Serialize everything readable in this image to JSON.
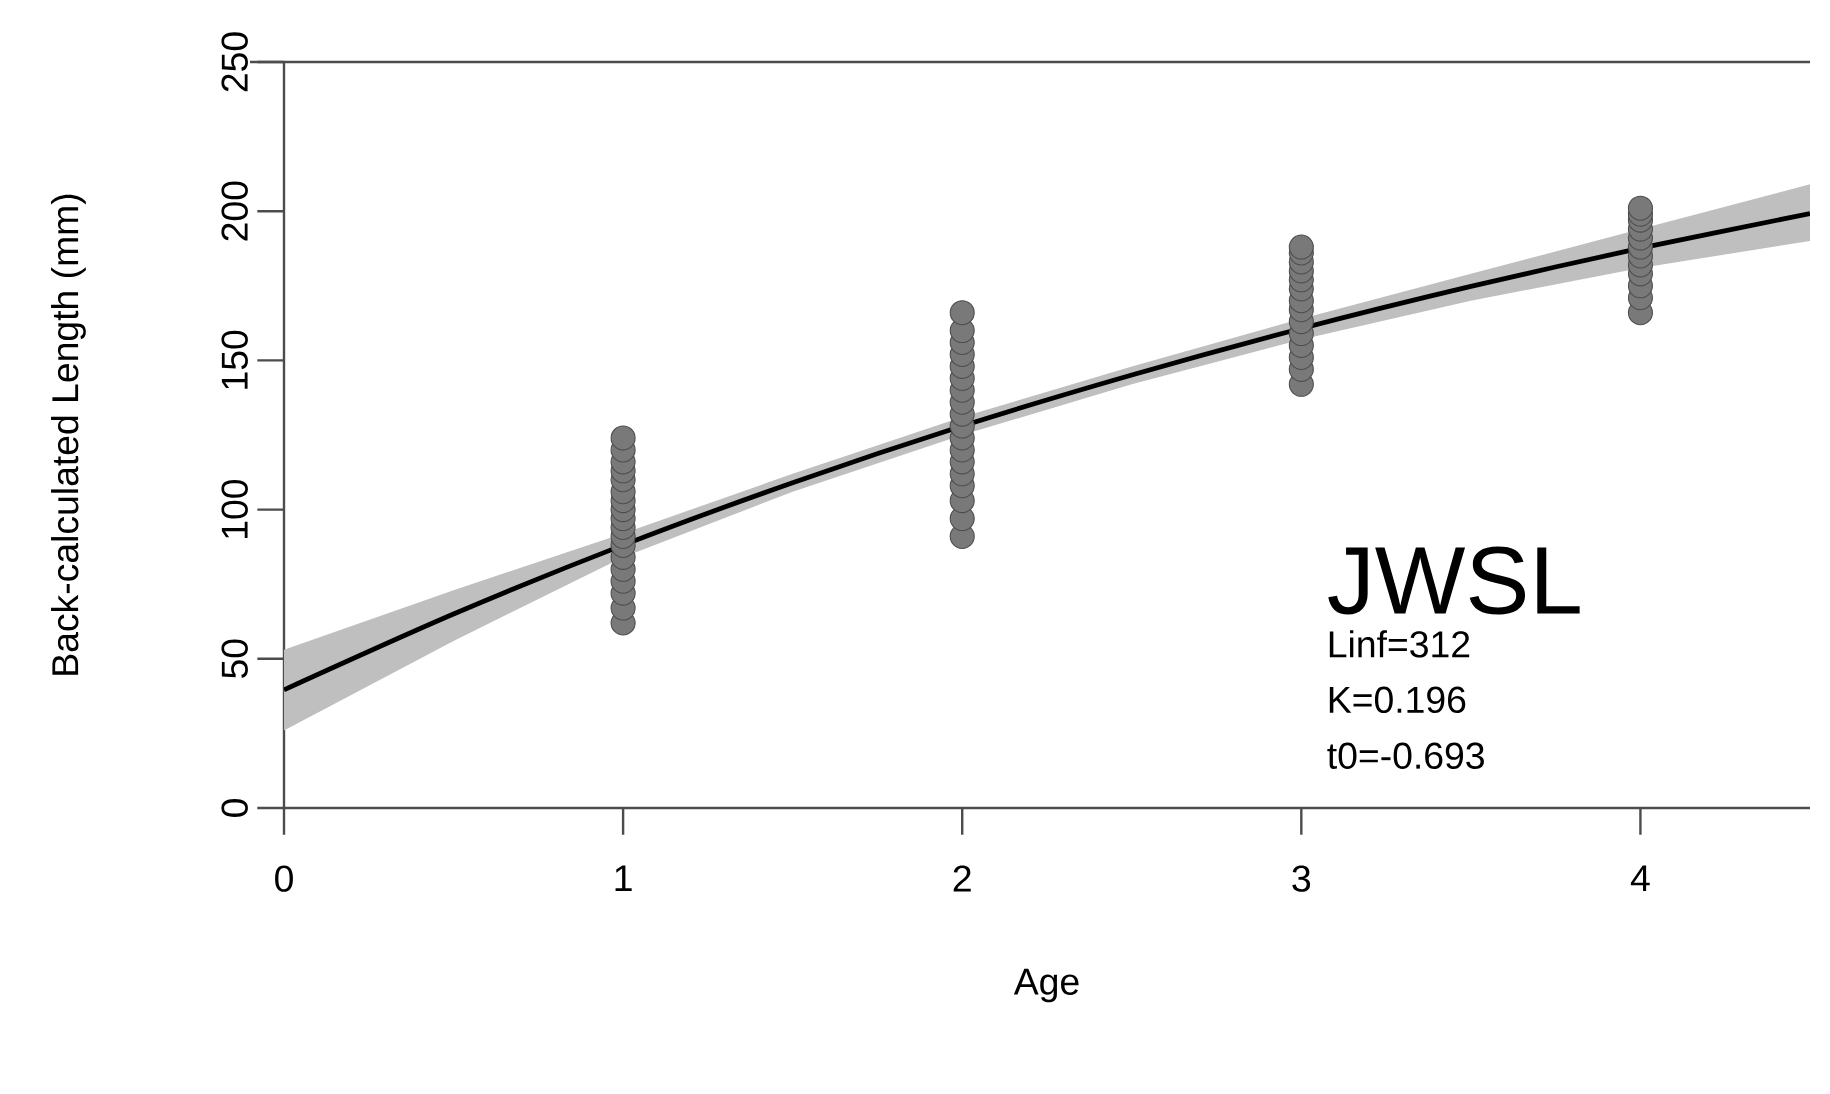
{
  "chart_data": {
    "type": "scatter",
    "xlabel": "Age",
    "ylabel": "Back-calculated Length (mm)",
    "xlim": [
      0,
      4.5
    ],
    "ylim": [
      0,
      250
    ],
    "xticks": [
      0,
      1,
      2,
      3,
      4
    ],
    "yticks": [
      0,
      50,
      100,
      150,
      200,
      250
    ],
    "grid": false,
    "marker": "circle",
    "annotations": [
      "JWSL",
      "Linf=312",
      "K=0.196",
      "t0=-0.693"
    ],
    "series": [
      {
        "color": "#4d4d4d",
        "x": [
          1,
          1,
          1,
          1,
          1,
          1,
          1,
          1,
          1,
          1,
          1,
          1,
          1,
          1,
          1,
          1,
          1,
          1,
          2,
          2,
          2,
          2,
          2,
          2,
          2,
          2,
          2,
          2,
          2,
          2,
          2,
          2,
          2,
          2,
          2,
          2,
          3,
          3,
          3,
          3,
          3,
          3,
          3,
          3,
          3,
          3,
          3,
          3,
          3,
          3,
          4,
          4,
          4,
          4,
          4,
          4,
          4,
          4,
          4,
          4,
          4,
          4
        ],
        "values": [
          62,
          67,
          72,
          76,
          80,
          84,
          88,
          91,
          94,
          97,
          100,
          103,
          106,
          110,
          113,
          116,
          120,
          124,
          91,
          97,
          103,
          108,
          112,
          116,
          120,
          124,
          128,
          132,
          136,
          140,
          144,
          148,
          152,
          156,
          160,
          166,
          142,
          147,
          151,
          155,
          159,
          163,
          167,
          170,
          174,
          177,
          180,
          183,
          186,
          188,
          166,
          171,
          175,
          179,
          182,
          185,
          188,
          191,
          194,
          197,
          199,
          201
        ]
      },
      {
        "type": "line",
        "color": "#000000",
        "line_style": "solid",
        "marker": "none",
        "x": [
          0,
          0.5,
          1,
          1.5,
          2,
          2.5,
          3,
          3.5,
          4,
          4.5
        ],
        "values": [
          39.6,
          65.0,
          88.1,
          109.0,
          128.0,
          145.1,
          160.7,
          174.8,
          187.6,
          199.2
        ],
        "lower": [
          26,
          56,
          84,
          106,
          125,
          142,
          157,
          170,
          181,
          190
        ],
        "upper": [
          53,
          73,
          92,
          112,
          131,
          148,
          164,
          179,
          194,
          209
        ]
      }
    ]
  }
}
